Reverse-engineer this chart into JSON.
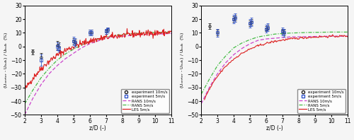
{
  "xlim": [
    2,
    11
  ],
  "ylim": [
    -50,
    30
  ],
  "yticks": [
    -50,
    -40,
    -30,
    -20,
    -10,
    0,
    10,
    20,
    30
  ],
  "xticks": [
    2,
    3,
    4,
    5,
    6,
    7,
    8,
    9,
    10,
    11
  ],
  "xlabel": "z/D (-)",
  "ylabel": "(U_center - U_bulk) / U_bulk  (%)",
  "panel_a": {
    "exp_10ms": {
      "x": [
        2.5,
        3.0,
        4.0,
        4.1,
        5.0,
        5.1,
        6.0,
        6.1,
        7.0,
        7.1
      ],
      "y": [
        -4,
        -8,
        1,
        0,
        4,
        3,
        10,
        10,
        11,
        12
      ],
      "yerr": [
        2,
        3,
        3,
        3,
        2,
        2,
        2,
        2,
        2,
        2
      ]
    },
    "exp_5ms": {
      "x": [
        3.0,
        4.0,
        4.1,
        5.0,
        5.1,
        6.0,
        6.1,
        7.0,
        7.1
      ],
      "y": [
        -10,
        0,
        -1,
        4,
        3,
        10,
        10,
        11,
        12
      ],
      "yerr": [
        4,
        3,
        3,
        3,
        3,
        2,
        2,
        2,
        2
      ]
    },
    "rans_10ms_x": [
      2.0,
      2.5,
      3.0,
      3.5,
      4.0,
      4.5,
      5.0,
      5.5,
      6.0,
      6.5,
      7.0,
      7.5,
      8.0,
      8.5,
      9.0,
      9.5,
      10.0,
      10.5,
      11.0
    ],
    "rans_10ms_y": [
      -50,
      -38,
      -28,
      -20,
      -14,
      -9,
      -5,
      -1,
      2,
      4,
      6,
      7,
      7.5,
      8,
      8.5,
      8.8,
      9,
      9.2,
      9.5
    ],
    "rans_5ms_x": [
      2.0,
      2.5,
      3.0,
      3.5,
      4.0,
      4.5,
      5.0,
      5.5,
      6.0,
      6.5,
      7.0,
      7.5,
      8.0,
      8.5,
      9.0,
      9.5,
      10.0,
      10.5,
      11.0
    ],
    "rans_5ms_y": [
      -42,
      -32,
      -23,
      -16,
      -10,
      -5.5,
      -2,
      1,
      3.5,
      5.5,
      7,
      8,
      8.8,
      9.3,
      9.7,
      10,
      10.2,
      10.3,
      10.5
    ]
  },
  "panel_b": {
    "exp_10ms": {
      "x": [
        2.5,
        3.0,
        4.0,
        4.1,
        5.0,
        5.1,
        6.0,
        6.1,
        7.0,
        7.1
      ],
      "y": [
        15,
        10,
        20,
        21,
        17,
        18,
        13,
        14,
        11,
        10
      ],
      "yerr": [
        2,
        2,
        2,
        2,
        2,
        2,
        2,
        2,
        2,
        2
      ]
    },
    "exp_5ms": {
      "x": [
        3.0,
        4.0,
        4.1,
        5.0,
        5.1,
        6.0,
        6.1,
        7.0,
        7.1
      ],
      "y": [
        10,
        20,
        21,
        17,
        18,
        13,
        14,
        11,
        10
      ],
      "yerr": [
        3,
        3,
        3,
        3,
        3,
        3,
        3,
        3,
        3
      ]
    },
    "rans_10ms_x": [
      2.0,
      2.5,
      3.0,
      3.5,
      4.0,
      4.5,
      5.0,
      5.5,
      6.0,
      6.5,
      7.0,
      7.5,
      8.0,
      8.5,
      9.0,
      9.5,
      10.0,
      10.5,
      11.0
    ],
    "rans_10ms_y": [
      -42,
      -30,
      -20,
      -12,
      -6,
      -1.5,
      2,
      4.5,
      5.5,
      6,
      6.5,
      7,
      7,
      7.2,
      7.3,
      7.4,
      7.5,
      7.5,
      7.5
    ],
    "rans_5ms_x": [
      2.0,
      2.5,
      3.0,
      3.5,
      4.0,
      4.5,
      5.0,
      5.5,
      6.0,
      6.5,
      7.0,
      7.5,
      8.0,
      8.5,
      9.0,
      9.5,
      10.0,
      10.5,
      11.0
    ],
    "rans_5ms_y": [
      -35,
      -24,
      -14,
      -7,
      -1,
      2.5,
      5,
      7,
      8,
      9,
      9.5,
      9.8,
      10,
      10.2,
      10.3,
      10.4,
      10.5,
      10.5,
      10.5
    ]
  },
  "color_exp10": "#222222",
  "color_exp5": "#3355cc",
  "color_rans10": "#cc44cc",
  "color_rans5": "#44bb44",
  "color_les": "#dd2222",
  "legend_labels": [
    "experiment 10m/s",
    "experiment 5m/s",
    "RANS 10m/s",
    "RANS 5m/s",
    "LES 5m/s"
  ],
  "background_color": "#f5f5f5"
}
